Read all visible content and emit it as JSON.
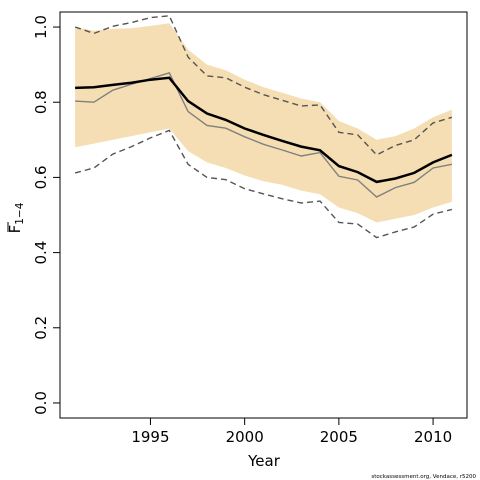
{
  "chart_data": {
    "type": "line",
    "xlabel": "Year",
    "ylabel_main": "F",
    "ylabel_sub": "1−4",
    "xlim": [
      1990.2,
      2011.8
    ],
    "ylim": [
      -0.04,
      1.04
    ],
    "xticks": [
      1995,
      2000,
      2005,
      2010
    ],
    "yticks": [
      0.0,
      0.2,
      0.4,
      0.6,
      0.8,
      1.0
    ],
    "ytick_labels": [
      "0.0",
      "0.2",
      "0.4",
      "0.6",
      "0.8",
      "1.0"
    ],
    "grid": false,
    "x": [
      1991,
      1992,
      1993,
      1994,
      1995,
      1996,
      1997,
      1998,
      1999,
      2000,
      2001,
      2002,
      2003,
      2004,
      2005,
      2006,
      2007,
      2008,
      2009,
      2010,
      2011
    ],
    "series": [
      {
        "role": "band_upper",
        "values": [
          1.0,
          0.99,
          0.995,
          0.997,
          1.003,
          1.01,
          0.94,
          0.9,
          0.885,
          0.86,
          0.84,
          0.825,
          0.81,
          0.8,
          0.75,
          0.73,
          0.7,
          0.71,
          0.73,
          0.76,
          0.78
        ]
      },
      {
        "role": "band_lower",
        "values": [
          0.68,
          0.69,
          0.7,
          0.71,
          0.72,
          0.73,
          0.67,
          0.64,
          0.625,
          0.605,
          0.59,
          0.58,
          0.565,
          0.555,
          0.52,
          0.505,
          0.48,
          0.49,
          0.5,
          0.52,
          0.535
        ]
      },
      {
        "role": "estimate",
        "values": [
          0.838,
          0.84,
          0.846,
          0.852,
          0.86,
          0.865,
          0.803,
          0.77,
          0.753,
          0.73,
          0.713,
          0.697,
          0.682,
          0.672,
          0.63,
          0.614,
          0.588,
          0.597,
          0.612,
          0.64,
          0.66
        ]
      },
      {
        "role": "estimate_alt",
        "values": [
          0.803,
          0.8,
          0.832,
          0.848,
          0.863,
          0.878,
          0.775,
          0.738,
          0.731,
          0.708,
          0.688,
          0.673,
          0.657,
          0.666,
          0.603,
          0.593,
          0.548,
          0.573,
          0.587,
          0.625,
          0.635
        ]
      },
      {
        "role": "ci_upper",
        "values": [
          1.0,
          0.983,
          1.002,
          1.012,
          1.025,
          1.03,
          0.92,
          0.87,
          0.865,
          0.84,
          0.82,
          0.805,
          0.79,
          0.793,
          0.72,
          0.713,
          0.66,
          0.685,
          0.7,
          0.745,
          0.76
        ]
      },
      {
        "role": "ci_lower",
        "values": [
          0.612,
          0.625,
          0.662,
          0.682,
          0.705,
          0.725,
          0.635,
          0.6,
          0.594,
          0.57,
          0.556,
          0.543,
          0.532,
          0.537,
          0.48,
          0.476,
          0.44,
          0.455,
          0.468,
          0.502,
          0.515
        ]
      }
    ],
    "colors": {
      "band": "#f5deb3",
      "estimate": "#000000",
      "estimate_alt": "#808080",
      "ci": "#555555",
      "axis": "#000000"
    }
  },
  "credit": "stockassessment.org, Vendace, r5200"
}
